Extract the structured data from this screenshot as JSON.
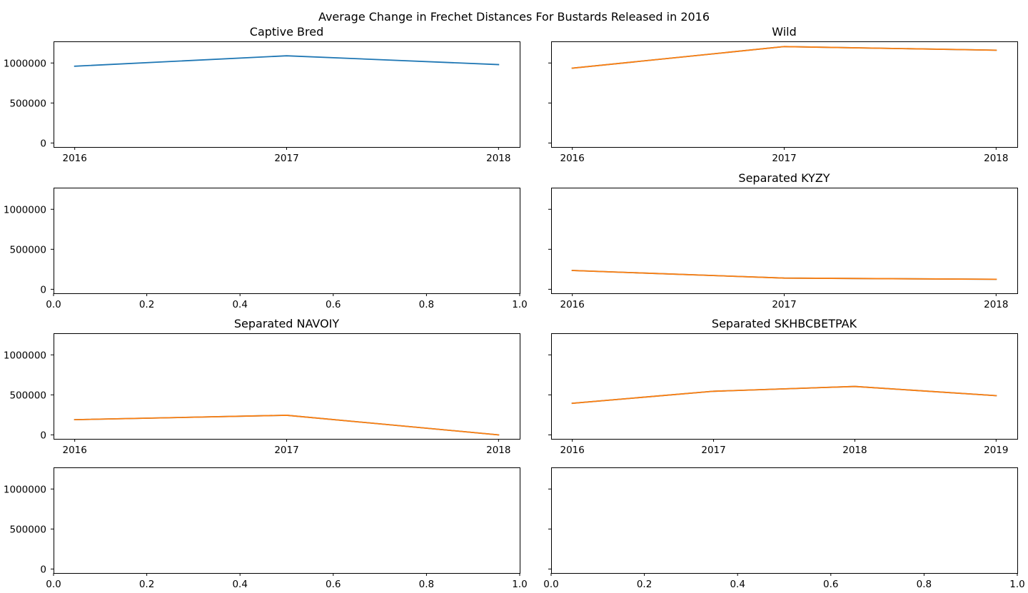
{
  "suptitle": "Average Change in Frechet Distances For Bustards Released in 2016",
  "chart_data": [
    {
      "type": "line",
      "title": "Captive Bred",
      "x": [
        "2016",
        "2017",
        "2018"
      ],
      "series": [
        {
          "color": "#1f77b4",
          "values": [
            960000,
            1090000,
            980000
          ]
        }
      ],
      "ylim": [
        -50000,
        1270000
      ],
      "yticks": [
        0,
        500000,
        1000000
      ],
      "show_ytick_labels": true
    },
    {
      "type": "line",
      "title": "Wild",
      "x": [
        "2016",
        "2017",
        "2018"
      ],
      "series": [
        {
          "color": "#1f77b4",
          "values": [
            935000,
            1205000,
            1160000
          ]
        },
        {
          "color": "#ff7f0e",
          "values": [
            935000,
            1205000,
            1160000
          ]
        }
      ],
      "ylim": [
        -50000,
        1270000
      ],
      "yticks": [
        0,
        500000,
        1000000
      ],
      "show_ytick_labels": false
    },
    {
      "type": "line",
      "title": "",
      "empty": true,
      "xlim": [
        0.0,
        1.0
      ],
      "xticks": [
        "0.0",
        "0.2",
        "0.4",
        "0.6",
        "0.8",
        "1.0"
      ],
      "series": [],
      "ylim": [
        -50000,
        1270000
      ],
      "yticks": [
        0,
        500000,
        1000000
      ],
      "show_ytick_labels": true
    },
    {
      "type": "line",
      "title": "Separated KYZY",
      "x": [
        "2016",
        "2017",
        "2018"
      ],
      "series": [
        {
          "color": "#1f77b4",
          "values": [
            235000,
            140000,
            125000
          ]
        },
        {
          "color": "#ff7f0e",
          "values": [
            235000,
            140000,
            125000
          ]
        }
      ],
      "ylim": [
        -50000,
        1270000
      ],
      "yticks": [
        0,
        500000,
        1000000
      ],
      "show_ytick_labels": false
    },
    {
      "type": "line",
      "title": "Separated NAVOIY",
      "x": [
        "2016",
        "2017",
        "2018"
      ],
      "series": [
        {
          "color": "#1f77b4",
          "values": [
            190000,
            245000,
            0
          ]
        },
        {
          "color": "#ff7f0e",
          "values": [
            190000,
            245000,
            0
          ]
        }
      ],
      "ylim": [
        -50000,
        1270000
      ],
      "yticks": [
        0,
        500000,
        1000000
      ],
      "show_ytick_labels": true
    },
    {
      "type": "line",
      "title": "Separated SKHBCBETPAK",
      "x": [
        "2016",
        "2017",
        "2018",
        "2019"
      ],
      "series": [
        {
          "color": "#1f77b4",
          "values": [
            395000,
            545000,
            605000,
            490000
          ]
        },
        {
          "color": "#ff7f0e",
          "values": [
            395000,
            545000,
            605000,
            490000
          ]
        }
      ],
      "ylim": [
        -50000,
        1270000
      ],
      "yticks": [
        0,
        500000,
        1000000
      ],
      "show_ytick_labels": false
    },
    {
      "type": "line",
      "title": "",
      "empty": true,
      "xlim": [
        0.0,
        1.0
      ],
      "xticks": [
        "0.0",
        "0.2",
        "0.4",
        "0.6",
        "0.8",
        "1.0"
      ],
      "series": [],
      "ylim": [
        -50000,
        1270000
      ],
      "yticks": [
        0,
        500000,
        1000000
      ],
      "show_ytick_labels": true
    },
    {
      "type": "line",
      "title": "",
      "empty": true,
      "xlim": [
        0.0,
        1.0
      ],
      "xticks": [
        "0.0",
        "0.2",
        "0.4",
        "0.6",
        "0.8",
        "1.0"
      ],
      "series": [],
      "ylim": [
        -50000,
        1270000
      ],
      "yticks": [
        0,
        500000,
        1000000
      ],
      "show_ytick_labels": false
    }
  ]
}
